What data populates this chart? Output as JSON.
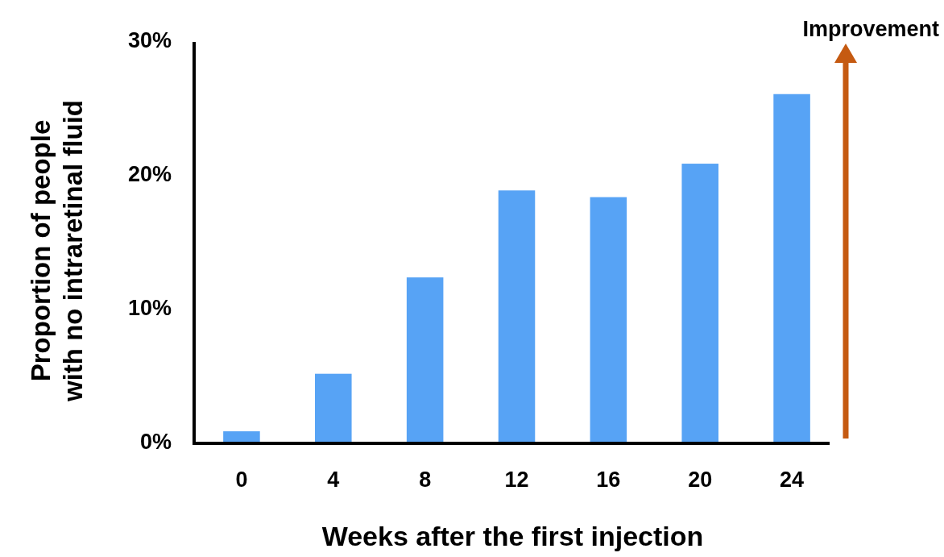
{
  "chart_data": {
    "type": "bar",
    "xlabel": "Weeks after the first injection",
    "ylabel": "Proportion of people\nwith no intraretinal fluid",
    "categories": [
      "0",
      "4",
      "8",
      "12",
      "16",
      "20",
      "24"
    ],
    "values": [
      0.9,
      5.2,
      12.4,
      18.9,
      18.4,
      20.9,
      26.1
    ],
    "color": "#57a3f5",
    "ylim": [
      0,
      30
    ],
    "yticks": [
      {
        "value": 0,
        "label": "0%"
      },
      {
        "value": 10,
        "label": "10%"
      },
      {
        "value": 20,
        "label": "20%"
      },
      {
        "value": 30,
        "label": "30%"
      }
    ],
    "grid": false,
    "annotations": [
      "Improvement"
    ]
  }
}
